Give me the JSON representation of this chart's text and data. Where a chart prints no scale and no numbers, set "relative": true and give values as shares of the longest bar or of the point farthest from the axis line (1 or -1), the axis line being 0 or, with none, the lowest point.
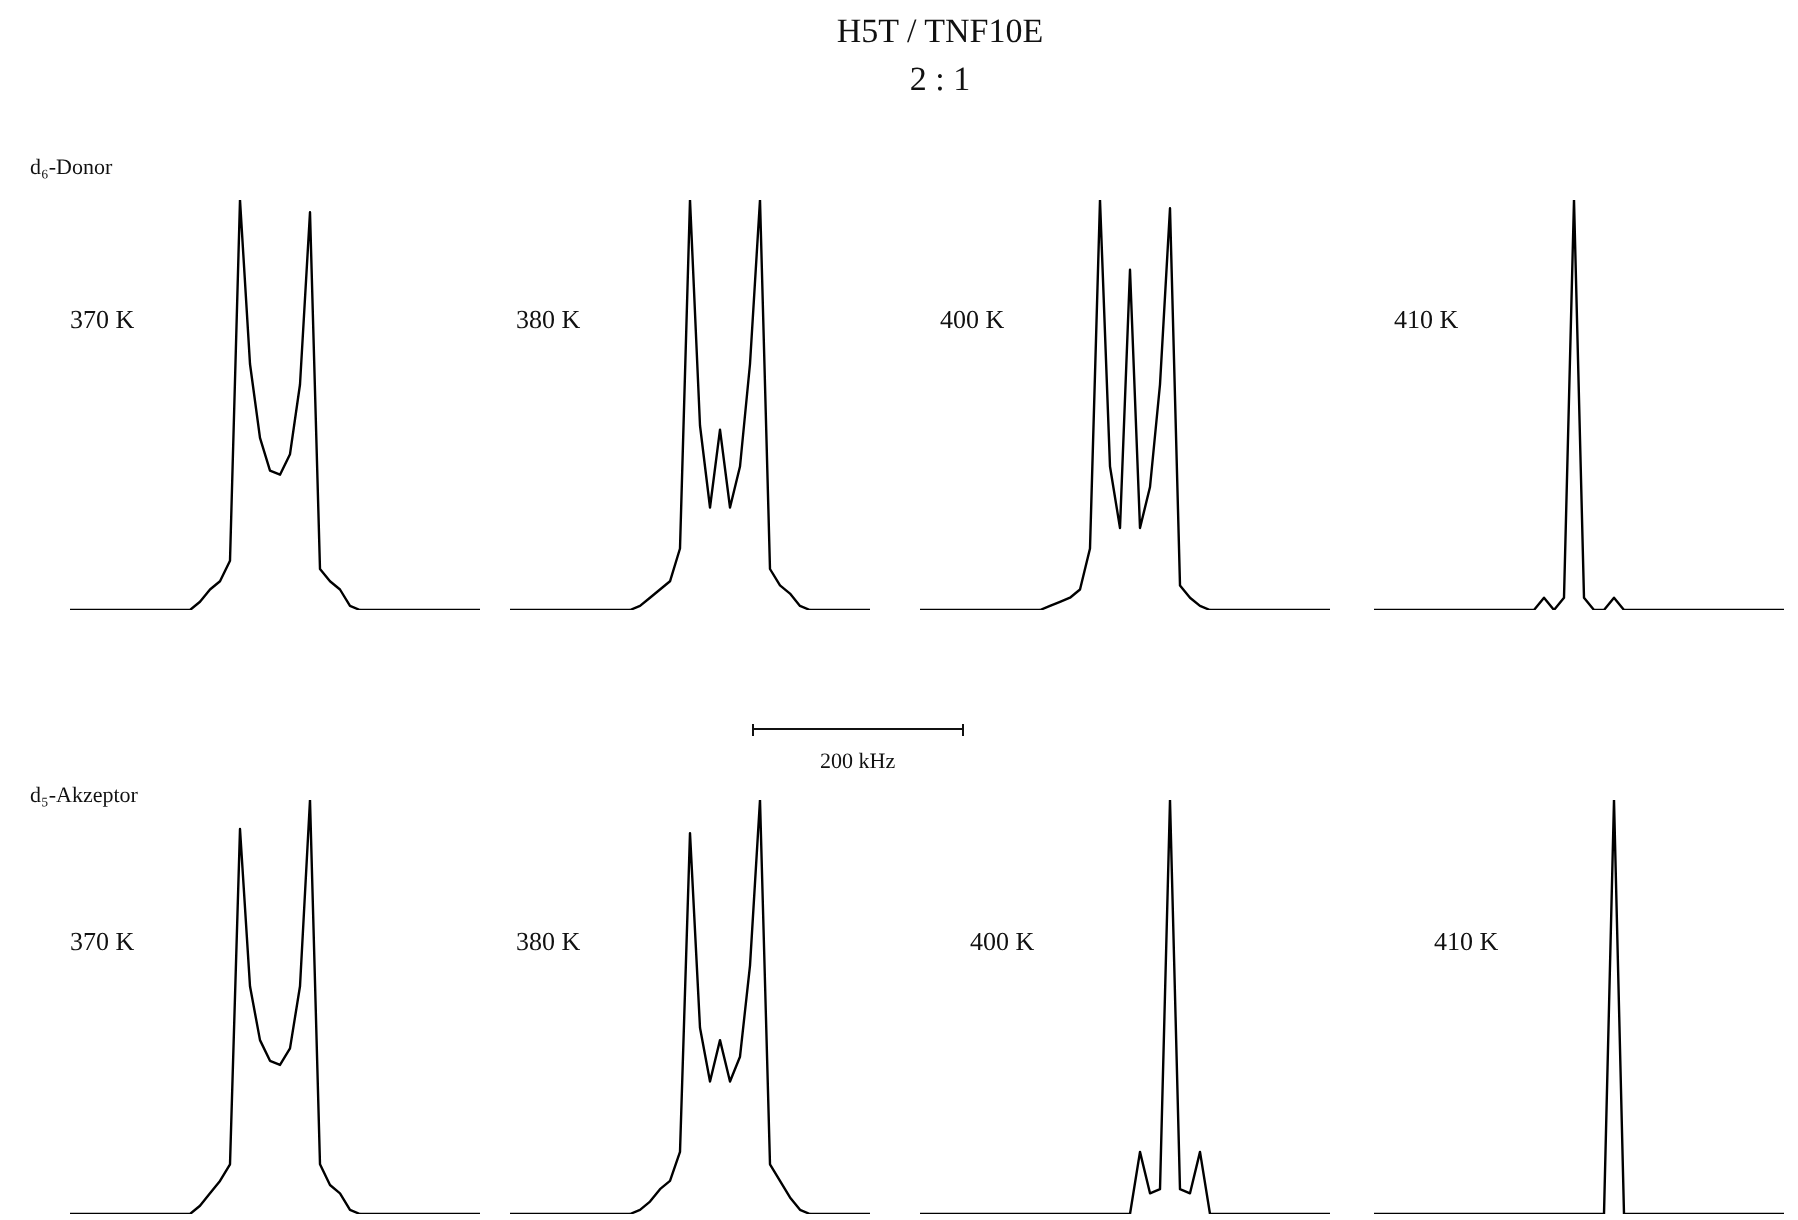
{
  "chart_data": [
    {
      "type": "other",
      "title": "H5T / TNF10E",
      "subtitle": "2 : 1",
      "annotations": [
        "d₆-Donor",
        "200 kHz",
        "d₅-Akzeptor"
      ]
    },
    {
      "type": "line",
      "title": "370 K",
      "relative": true,
      "color": "#000000",
      "categories": [
        null,
        null,
        null,
        null,
        null,
        null,
        null,
        null,
        null,
        null,
        null,
        null,
        null,
        null,
        null,
        null,
        null,
        null,
        null,
        null,
        null,
        null,
        null,
        null,
        null,
        null,
        null,
        null,
        null,
        null,
        null,
        null,
        null,
        null,
        null,
        null,
        null,
        null,
        null,
        null,
        null,
        null
      ],
      "values": [
        0,
        0,
        0,
        0,
        0,
        0,
        0,
        0,
        0,
        0,
        0,
        0,
        0,
        0.02,
        0.05,
        0.07,
        0.12,
        1,
        0.6,
        0.42,
        0.34,
        0.33,
        0.38,
        0.55,
        0.97,
        0.1,
        0.07,
        0.05,
        0.01,
        0,
        0,
        0,
        0,
        0,
        0,
        0,
        0,
        0,
        0,
        0,
        0,
        0
      ]
    },
    {
      "type": "line",
      "title": "380 K",
      "relative": true,
      "color": "#000000",
      "categories": [
        null,
        null,
        null,
        null,
        null,
        null,
        null,
        null,
        null,
        null,
        null,
        null,
        null,
        null,
        null,
        null,
        null,
        null,
        null,
        null,
        null,
        null,
        null,
        null,
        null,
        null,
        null,
        null,
        null,
        null,
        null,
        null,
        null,
        null,
        null,
        null,
        null
      ],
      "values": [
        0,
        0,
        0,
        0,
        0,
        0,
        0,
        0,
        0,
        0,
        0,
        0,
        0,
        0.01,
        0.03,
        0.05,
        0.07,
        0.15,
        1,
        0.45,
        0.25,
        0.44,
        0.25,
        0.35,
        0.6,
        1,
        0.1,
        0.06,
        0.04,
        0.01,
        0,
        0,
        0,
        0,
        0,
        0,
        0
      ]
    },
    {
      "type": "line",
      "title": "400 K",
      "relative": true,
      "color": "#000000",
      "categories": [
        null,
        null,
        null,
        null,
        null,
        null,
        null,
        null,
        null,
        null,
        null,
        null,
        null,
        null,
        null,
        null,
        null,
        null,
        null,
        null,
        null,
        null,
        null,
        null,
        null,
        null,
        null,
        null,
        null,
        null,
        null,
        null,
        null,
        null,
        null,
        null,
        null,
        null,
        null,
        null,
        null,
        null
      ],
      "values": [
        0,
        0,
        0,
        0,
        0,
        0,
        0,
        0,
        0,
        0,
        0,
        0,
        0,
        0.01,
        0.02,
        0.03,
        0.05,
        0.15,
        1,
        0.35,
        0.2,
        0.83,
        0.2,
        0.3,
        0.55,
        0.98,
        0.06,
        0.03,
        0.01,
        0,
        0,
        0,
        0,
        0,
        0,
        0,
        0,
        0,
        0,
        0,
        0,
        0
      ]
    },
    {
      "type": "line",
      "title": "410 K",
      "relative": true,
      "color": "#000000",
      "categories": [
        null,
        null,
        null,
        null,
        null,
        null,
        null,
        null,
        null,
        null,
        null,
        null,
        null,
        null,
        null,
        null,
        null,
        null,
        null,
        null,
        null,
        null,
        null,
        null,
        null,
        null,
        null,
        null,
        null,
        null,
        null,
        null,
        null,
        null,
        null,
        null,
        null,
        null,
        null,
        null,
        null,
        null
      ],
      "values": [
        0,
        0,
        0,
        0,
        0,
        0,
        0,
        0,
        0,
        0,
        0,
        0,
        0,
        0,
        0,
        0,
        0,
        0.03,
        0,
        0.03,
        1,
        0.03,
        0,
        0,
        0.03,
        0,
        0,
        0,
        0,
        0,
        0,
        0,
        0,
        0,
        0,
        0,
        0,
        0,
        0,
        0,
        0,
        0
      ]
    },
    {
      "type": "line",
      "title": "370 K",
      "relative": true,
      "color": "#000000",
      "categories": [
        null,
        null,
        null,
        null,
        null,
        null,
        null,
        null,
        null,
        null,
        null,
        null,
        null,
        null,
        null,
        null,
        null,
        null,
        null,
        null,
        null,
        null,
        null,
        null,
        null,
        null,
        null,
        null,
        null,
        null,
        null,
        null,
        null,
        null,
        null,
        null,
        null,
        null,
        null,
        null,
        null,
        null
      ],
      "values": [
        0,
        0,
        0,
        0,
        0,
        0,
        0,
        0,
        0,
        0,
        0,
        0,
        0,
        0.02,
        0.05,
        0.08,
        0.12,
        0.93,
        0.55,
        0.42,
        0.37,
        0.36,
        0.4,
        0.55,
        1,
        0.12,
        0.07,
        0.05,
        0.01,
        0,
        0,
        0,
        0,
        0,
        0,
        0,
        0,
        0,
        0,
        0,
        0,
        0
      ]
    },
    {
      "type": "line",
      "title": "380 K",
      "relative": true,
      "color": "#000000",
      "categories": [
        null,
        null,
        null,
        null,
        null,
        null,
        null,
        null,
        null,
        null,
        null,
        null,
        null,
        null,
        null,
        null,
        null,
        null,
        null,
        null,
        null,
        null,
        null,
        null,
        null,
        null,
        null,
        null,
        null,
        null,
        null,
        null,
        null,
        null,
        null,
        null,
        null
      ],
      "values": [
        0,
        0,
        0,
        0,
        0,
        0,
        0,
        0,
        0,
        0,
        0,
        0,
        0,
        0.01,
        0.03,
        0.06,
        0.08,
        0.15,
        0.92,
        0.45,
        0.32,
        0.42,
        0.32,
        0.38,
        0.6,
        1,
        0.12,
        0.08,
        0.04,
        0.01,
        0,
        0,
        0,
        0,
        0,
        0,
        0
      ]
    },
    {
      "type": "line",
      "title": "400 K",
      "relative": true,
      "color": "#000000",
      "categories": [
        null,
        null,
        null,
        null,
        null,
        null,
        null,
        null,
        null,
        null,
        null,
        null,
        null,
        null,
        null,
        null,
        null,
        null,
        null,
        null,
        null,
        null,
        null,
        null,
        null,
        null,
        null,
        null,
        null,
        null,
        null,
        null,
        null,
        null,
        null,
        null,
        null,
        null,
        null,
        null,
        null,
        null
      ],
      "values": [
        0,
        0,
        0,
        0,
        0,
        0,
        0,
        0,
        0,
        0,
        0,
        0,
        0,
        0,
        0,
        0,
        0,
        0,
        0,
        0,
        0,
        0,
        0.15,
        0.05,
        0.06,
        1,
        0.06,
        0.05,
        0.15,
        0,
        0,
        0,
        0,
        0,
        0,
        0,
        0,
        0,
        0,
        0,
        0,
        0
      ]
    },
    {
      "type": "line",
      "title": "410 K",
      "relative": true,
      "color": "#000000",
      "categories": [
        null,
        null,
        null,
        null,
        null,
        null,
        null,
        null,
        null,
        null,
        null,
        null,
        null,
        null,
        null,
        null,
        null,
        null,
        null,
        null,
        null,
        null,
        null,
        null,
        null,
        null,
        null,
        null,
        null,
        null,
        null,
        null,
        null,
        null,
        null,
        null,
        null,
        null,
        null,
        null,
        null,
        null
      ],
      "values": [
        0,
        0,
        0,
        0,
        0,
        0,
        0,
        0,
        0,
        0,
        0,
        0,
        0,
        0,
        0,
        0,
        0,
        0,
        0,
        0,
        0,
        0,
        0,
        0,
        1,
        0,
        0,
        0,
        0,
        0,
        0,
        0,
        0,
        0,
        0,
        0,
        0,
        0,
        0,
        0,
        0,
        0
      ]
    }
  ]
}
